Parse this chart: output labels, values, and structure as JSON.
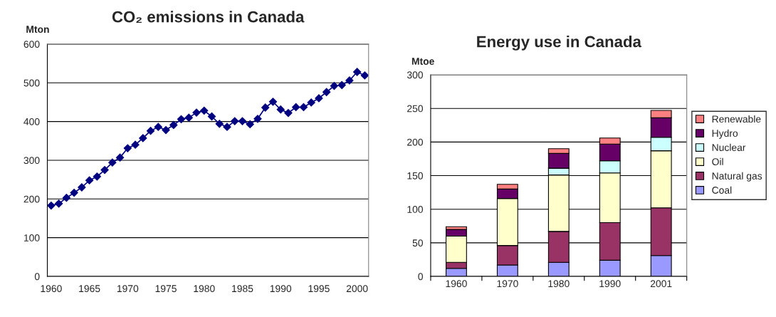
{
  "chart_data": [
    {
      "type": "line",
      "title": "CO₂ emissions in Canada",
      "ylabel": "Mton",
      "marker": "diamond",
      "line_style": "solid",
      "grid": "y",
      "legend": false,
      "x": [
        1960,
        1961,
        1962,
        1963,
        1964,
        1965,
        1966,
        1967,
        1968,
        1969,
        1970,
        1971,
        1972,
        1973,
        1974,
        1975,
        1976,
        1977,
        1978,
        1979,
        1980,
        1981,
        1982,
        1983,
        1984,
        1985,
        1986,
        1987,
        1988,
        1989,
        1990,
        1991,
        1992,
        1993,
        1994,
        1995,
        1996,
        1997,
        1998,
        1999,
        2000,
        2001
      ],
      "series": [
        {
          "color": "#000080",
          "values": [
            183,
            188,
            203,
            216,
            230,
            248,
            258,
            275,
            294,
            307,
            331,
            340,
            357,
            376,
            386,
            378,
            391,
            406,
            410,
            423,
            428,
            413,
            394,
            386,
            401,
            401,
            393,
            407,
            436,
            451,
            431,
            422,
            437,
            437,
            449,
            460,
            476,
            492,
            494,
            506,
            528,
            519
          ]
        }
      ],
      "xlim": [
        1959.5,
        2001.5
      ],
      "xticks": [
        1960,
        1965,
        1970,
        1975,
        1980,
        1985,
        1990,
        1995,
        2000
      ],
      "ylim": [
        0,
        600
      ],
      "yticks": [
        0,
        100,
        200,
        300,
        400,
        500,
        600
      ]
    },
    {
      "type": "bar",
      "title": "Energy use in Canada",
      "ylabel": "Mtoe",
      "stacked": true,
      "grid": "y",
      "legend": "right",
      "categories": [
        "1960",
        "1970",
        "1980",
        "1990",
        "2001"
      ],
      "series": [
        {
          "name": "Coal",
          "color": "#9999ff",
          "values": [
            12,
            17,
            21,
            24,
            31
          ]
        },
        {
          "name": "Natural gas",
          "color": "#993366",
          "values": [
            9,
            29,
            46,
            56,
            71
          ]
        },
        {
          "name": "Oil",
          "color": "#ffffcc",
          "values": [
            39,
            70,
            84,
            74,
            85
          ]
        },
        {
          "name": "Nuclear",
          "color": "#ccffff",
          "values": [
            null,
            null,
            10,
            18,
            20
          ]
        },
        {
          "name": "Hydro",
          "color": "#660066",
          "values": [
            10,
            14,
            22,
            25,
            29
          ]
        },
        {
          "name": "Renewable",
          "color": "#ff8080",
          "values": [
            4,
            7,
            7,
            9,
            11
          ]
        }
      ],
      "ylim": [
        0,
        300
      ],
      "yticks": [
        0,
        50,
        100,
        150,
        200,
        250,
        300
      ]
    }
  ]
}
